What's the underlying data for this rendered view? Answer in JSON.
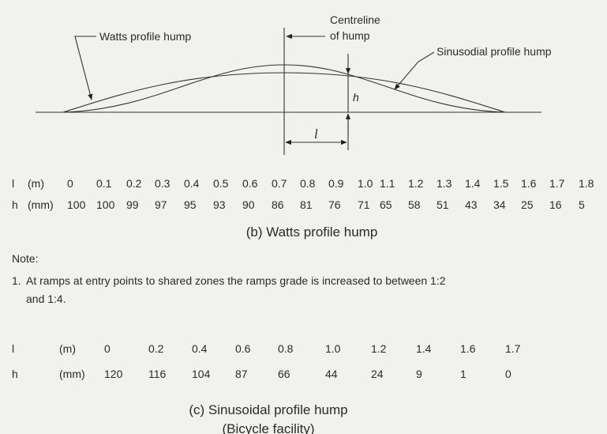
{
  "diagram": {
    "watts_label": "Watts profile hump",
    "centreline_label": [
      "Centreline",
      "of hump"
    ],
    "sinusoidal_label": "Sinusodial profile hump",
    "h_label": "h",
    "l_label": "l"
  },
  "watts_table": {
    "rows": [
      [
        "l",
        "(m)",
        "0",
        "0.1",
        "0.2",
        "0.3",
        "0.4",
        "0.5",
        "0.6",
        "0.7",
        "0.8",
        "0.9",
        "1.0",
        "1.1",
        "1.2",
        "1.3",
        "1.4",
        "1.5",
        "1.6",
        "1.7",
        "1.8"
      ],
      [
        "h",
        "(mm)",
        "100",
        "100",
        "99",
        "97",
        "95",
        "93",
        "90",
        "86",
        "81",
        "76",
        "71",
        "65",
        "58",
        "51",
        "43",
        "34",
        "25",
        "16",
        "5"
      ]
    ],
    "caption": "(b) Watts profile hump"
  },
  "note": {
    "heading": "Note:",
    "items": [
      {
        "number": "1.",
        "lines": [
          "At ramps at entry points to shared zones the ramps grade is increased to between 1:2",
          "and 1:4."
        ]
      }
    ]
  },
  "sinusoidal_table": {
    "rows": [
      [
        "l",
        "(m)",
        "0",
        "0.2",
        "0.4",
        "0.6",
        "0.8",
        "1.0",
        "1.2",
        "1.4",
        "1.6",
        "1.7"
      ],
      [
        "h",
        "(mm)",
        "120",
        "116",
        "104",
        "87",
        "66",
        "44",
        "24",
        "9",
        "1",
        "0"
      ]
    ],
    "caption": [
      "(c) Sinusoidal profile hump",
      "(Bicycle facility)"
    ]
  }
}
